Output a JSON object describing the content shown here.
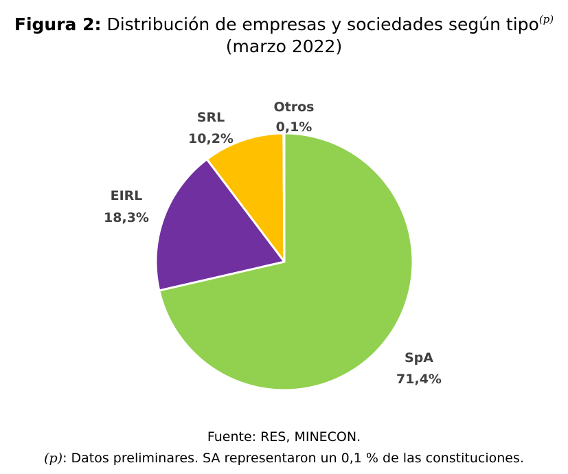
{
  "header": {
    "figure_label": "Figura 2:",
    "title": "Distribución de empresas y sociedades según tipo",
    "superscript": "(p)",
    "subtitle": "(marzo 2022)"
  },
  "chart_data": {
    "type": "pie",
    "title": "Figura 2: Distribución de empresas y sociedades según tipo(p) (marzo 2022)",
    "start": "12 o'clock",
    "direction": "clockwise",
    "slices": [
      {
        "name": "SpA",
        "value": 71.4,
        "label": "71,4%",
        "color": "#92D050"
      },
      {
        "name": "EIRL",
        "value": 18.3,
        "label": "18,3%",
        "color": "#7030A0"
      },
      {
        "name": "SRL",
        "value": 10.2,
        "label": "10,2%",
        "color": "#FFC000"
      },
      {
        "name": "Otros",
        "value": 0.1,
        "label": "0,1%",
        "color": "#4472C4"
      }
    ],
    "legend": "none"
  },
  "footer": {
    "source": "Fuente: RES, MINECON.",
    "note_symbol": "(p)",
    "note_text": ": Datos preliminares. SA representaron un 0,1 % de las constituciones."
  }
}
